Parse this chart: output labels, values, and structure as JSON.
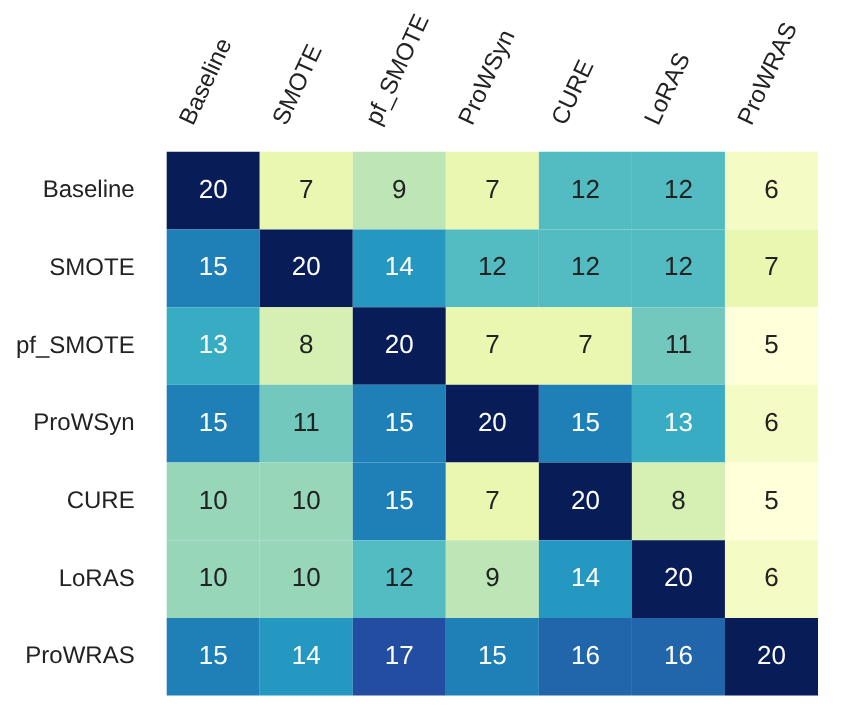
{
  "chart_data": {
    "type": "heatmap",
    "categories": [
      "Baseline",
      "SMOTE",
      "pf_SMOTE",
      "ProWSyn",
      "CURE",
      "LoRAS",
      "ProWRAS"
    ],
    "y_categories": [
      "Baseline",
      "SMOTE",
      "pf_SMOTE",
      "ProWSyn",
      "CURE",
      "LoRAS",
      "ProWRAS"
    ],
    "cells": [
      [
        20,
        7,
        9,
        7,
        12,
        12,
        6
      ],
      [
        15,
        20,
        14,
        12,
        12,
        12,
        7
      ],
      [
        13,
        8,
        20,
        7,
        7,
        11,
        5
      ],
      [
        15,
        11,
        15,
        20,
        15,
        13,
        6
      ],
      [
        10,
        10,
        15,
        7,
        20,
        8,
        5
      ],
      [
        10,
        10,
        12,
        9,
        14,
        20,
        6
      ],
      [
        15,
        14,
        17,
        15,
        16,
        16,
        20
      ]
    ],
    "data_labels": true
  }
}
